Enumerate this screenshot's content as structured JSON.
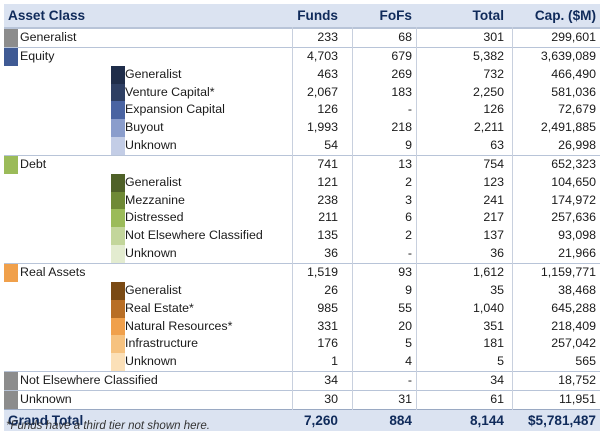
{
  "header": {
    "asset_class": "Asset Class",
    "funds": "Funds",
    "fofs": "FoFs",
    "total": "Total",
    "cap": "Cap. ($M)"
  },
  "rows": [
    {
      "level": "top",
      "label": "Generalist",
      "color": "#8c8c8c",
      "funds": "233",
      "fofs": "68",
      "total": "301",
      "cap": "299,601"
    },
    {
      "level": "top",
      "label": "Equity",
      "color": "#3f5a94",
      "funds": "4,703",
      "fofs": "679",
      "total": "5,382",
      "cap": "3,639,089"
    },
    {
      "level": "sub",
      "label": "Generalist",
      "color": "#1f2d4a",
      "funds": "463",
      "fofs": "269",
      "total": "732",
      "cap": "466,490"
    },
    {
      "level": "sub",
      "label": "Venture Capital*",
      "color": "#2e3f63",
      "funds": "2,067",
      "fofs": "183",
      "total": "2,250",
      "cap": "581,036"
    },
    {
      "level": "sub",
      "label": "Expansion Capital",
      "color": "#4a64a2",
      "funds": "126",
      "fofs": "-",
      "total": "126",
      "cap": "72,679"
    },
    {
      "level": "sub",
      "label": "Buyout",
      "color": "#8a9dcc",
      "funds": "1,993",
      "fofs": "218",
      "total": "2,211",
      "cap": "2,491,885"
    },
    {
      "level": "sub",
      "label": "Unknown",
      "color": "#c3cde6",
      "funds": "54",
      "fofs": "9",
      "total": "63",
      "cap": "26,998"
    },
    {
      "level": "top",
      "label": "Debt",
      "color": "#9bbb59",
      "funds": "741",
      "fofs": "13",
      "total": "754",
      "cap": "652,323"
    },
    {
      "level": "sub",
      "label": "Generalist",
      "color": "#4f6128",
      "funds": "121",
      "fofs": "2",
      "total": "123",
      "cap": "104,650"
    },
    {
      "level": "sub",
      "label": "Mezzanine",
      "color": "#6f8a36",
      "funds": "238",
      "fofs": "3",
      "total": "241",
      "cap": "174,972"
    },
    {
      "level": "sub",
      "label": "Distressed",
      "color": "#9bbb59",
      "funds": "211",
      "fofs": "6",
      "total": "217",
      "cap": "257,636"
    },
    {
      "level": "sub",
      "label": "Not Elsewhere Classified",
      "color": "#c3d69b",
      "funds": "135",
      "fofs": "2",
      "total": "137",
      "cap": "93,098"
    },
    {
      "level": "sub",
      "label": "Unknown",
      "color": "#e3ecd0",
      "funds": "36",
      "fofs": "-",
      "total": "36",
      "cap": "21,966"
    },
    {
      "level": "top",
      "label": "Real Assets",
      "color": "#f0a04b",
      "funds": "1,519",
      "fofs": "93",
      "total": "1,612",
      "cap": "1,159,771"
    },
    {
      "level": "sub",
      "label": "Generalist",
      "color": "#7a4a14",
      "funds": "26",
      "fofs": "9",
      "total": "35",
      "cap": "38,468"
    },
    {
      "level": "sub",
      "label": "Real Estate*",
      "color": "#b86e25",
      "funds": "985",
      "fofs": "55",
      "total": "1,040",
      "cap": "645,288"
    },
    {
      "level": "sub",
      "label": "Natural Resources*",
      "color": "#f0a04b",
      "funds": "331",
      "fofs": "20",
      "total": "351",
      "cap": "218,409"
    },
    {
      "level": "sub",
      "label": "Infrastructure",
      "color": "#f6c27f",
      "funds": "176",
      "fofs": "5",
      "total": "181",
      "cap": "257,042"
    },
    {
      "level": "sub",
      "label": "Unknown",
      "color": "#fbe0b8",
      "funds": "1",
      "fofs": "4",
      "total": "5",
      "cap": "565"
    },
    {
      "level": "top",
      "label": "Not Elsewhere Classified",
      "color": "#8c8c8c",
      "funds": "34",
      "fofs": "-",
      "total": "34",
      "cap": "18,752"
    },
    {
      "level": "top",
      "label": "Unknown",
      "color": "#8c8c8c",
      "funds": "30",
      "fofs": "31",
      "total": "61",
      "cap": "11,951"
    }
  ],
  "grand_total": {
    "label": "Grand Total",
    "funds": "7,260",
    "fofs": "884",
    "total": "8,144",
    "cap": "$5,781,487"
  },
  "footnote": "*Funds have a third tier not shown here."
}
